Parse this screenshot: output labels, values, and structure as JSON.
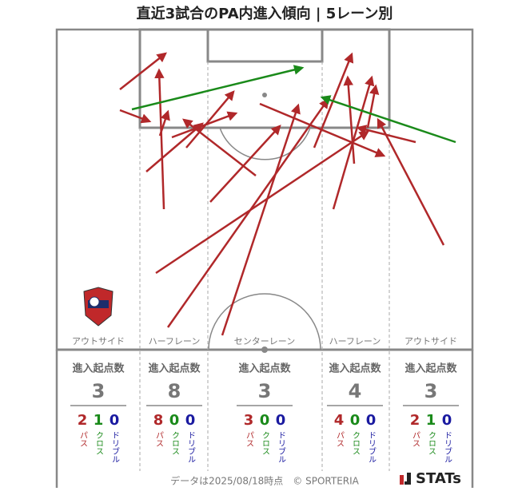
{
  "title": "直近3試合のPA内進入傾向 | 5レーン別",
  "lane_header": "進入起点数",
  "stat_labels": {
    "pass": "パス",
    "cross": "クロス",
    "dribble": "ドリブル"
  },
  "lanes": [
    {
      "name": "アウトサイド",
      "total": 3,
      "pass": 2,
      "cross": 1,
      "dribble": 0
    },
    {
      "name": "ハーフレーン",
      "total": 8,
      "pass": 8,
      "cross": 0,
      "dribble": 0
    },
    {
      "name": "センターレーン",
      "total": 3,
      "pass": 3,
      "cross": 0,
      "dribble": 0
    },
    {
      "name": "ハーフレーン",
      "total": 4,
      "pass": 4,
      "cross": 0,
      "dribble": 0
    },
    {
      "name": "アウトサイド",
      "total": 3,
      "pass": 2,
      "cross": 1,
      "dribble": 0
    }
  ],
  "footer": "データは2025/08/18時点　© SPORTERIA",
  "logo": "STATs"
}
